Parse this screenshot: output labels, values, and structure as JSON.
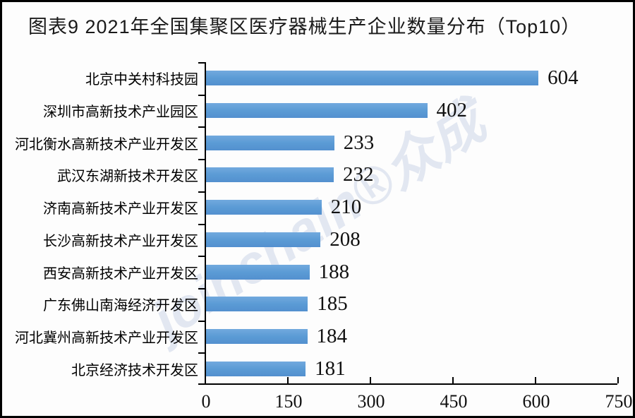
{
  "page": {
    "title": "图表9  2021年全国集聚区医疗器械生产企业数量分布（Top10）"
  },
  "watermark": {
    "text": "joinchain®众成"
  },
  "colors": {
    "bar": "#5b9bd5",
    "axis": "#000000",
    "title_text": "#1a1a1a",
    "watermark_text": "#e2e7f1"
  },
  "chart_data": {
    "type": "bar",
    "orientation": "horizontal",
    "title": "图表9  2021年全国集聚区医疗器械生产企业数量分布（Top10）",
    "categories": [
      "北京中关村科技园",
      "深圳市高新技术产业园区",
      "河北衡水高新技术产业开发区",
      "武汉东湖新技术开发区",
      "济南高新技术产业开发区",
      "长沙高新技术产业开发区",
      "西安高新技术产业开发区",
      "广东佛山南海经济开发区",
      "河北冀州高新技术产业开发区",
      "北京经济技术开发区"
    ],
    "values": [
      604,
      402,
      233,
      232,
      210,
      208,
      188,
      185,
      184,
      181
    ],
    "xlabel": "",
    "ylabel": "",
    "xlim": [
      0,
      750
    ],
    "x_ticks": [
      0,
      150,
      300,
      450,
      600,
      750
    ],
    "grid": false,
    "legend": "none",
    "data_labels": true,
    "bar_color": "#5b9bd5"
  }
}
